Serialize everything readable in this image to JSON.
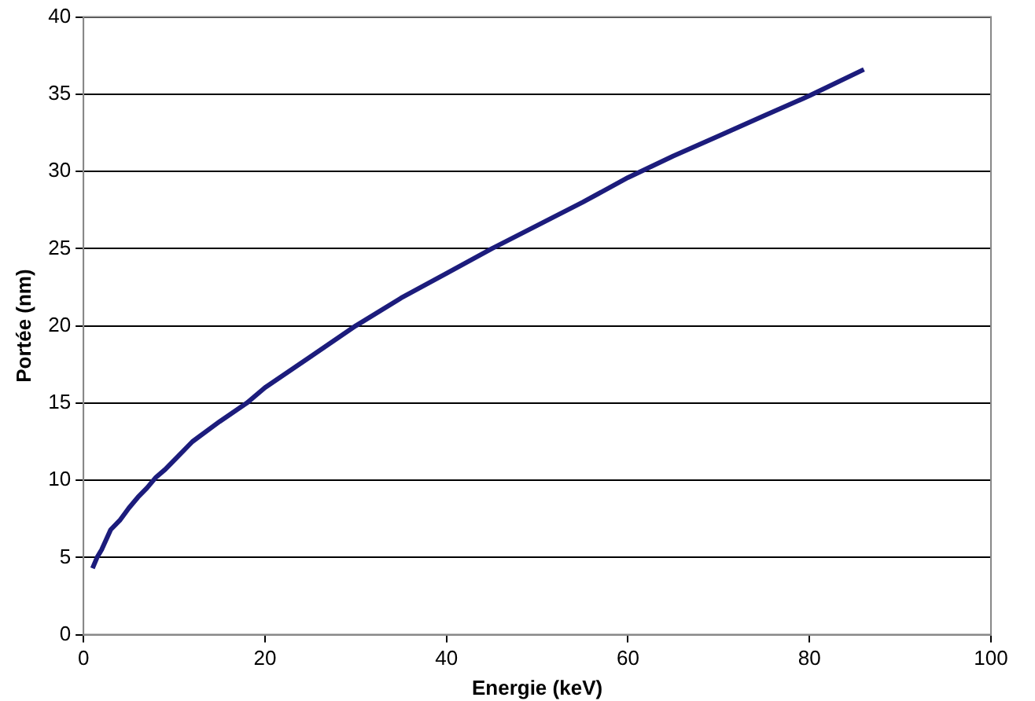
{
  "chart_data": {
    "type": "line",
    "xlabel": "Energie (keV)",
    "ylabel": "Portée (nm)",
    "series": [
      {
        "color": "#1c1c7c",
        "x": [
          1,
          1.5,
          2,
          3,
          4,
          5,
          6,
          7,
          8,
          9,
          10,
          12,
          15,
          18,
          20,
          25,
          30,
          35,
          40,
          45,
          50,
          55,
          60,
          65,
          70,
          75,
          80,
          86
        ],
        "values": [
          4.3,
          5,
          5.5,
          6.8,
          7.4,
          8.2,
          8.9,
          9.5,
          10.2,
          10.7,
          11.3,
          12.5,
          13.8,
          15,
          16,
          18,
          20,
          21.8,
          23.4,
          25,
          26.5,
          28,
          29.6,
          31,
          32.3,
          33.6,
          34.9,
          36.6
        ]
      }
    ],
    "xlim": [
      0,
      100
    ],
    "xticks": [
      0,
      20,
      40,
      60,
      80,
      100
    ],
    "ylim": [
      0,
      40
    ],
    "yticks": [
      0,
      5,
      10,
      15,
      20,
      25,
      30,
      35,
      40
    ],
    "grid": "y",
    "legend": false,
    "marker": "none",
    "line_style": "solid"
  }
}
